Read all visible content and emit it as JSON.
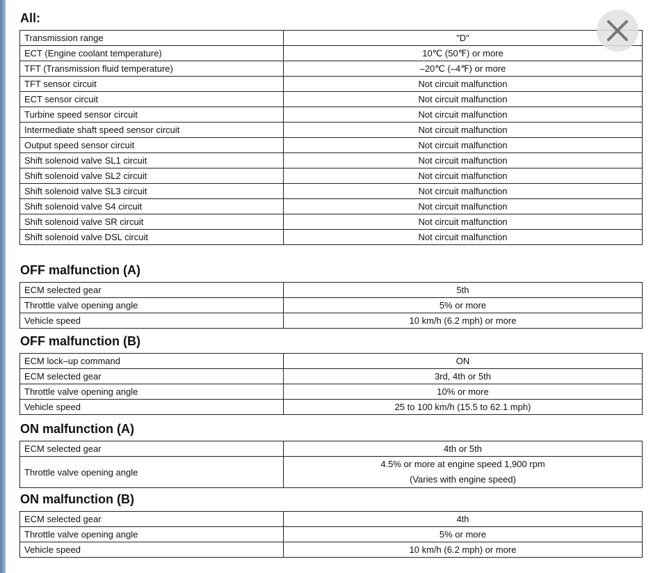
{
  "sections": [
    {
      "title": "All:",
      "rows": [
        [
          "Transmission range",
          "\"D\""
        ],
        [
          "ECT (Engine coolant temperature)",
          "10℃ (50℉) or more"
        ],
        [
          "TFT (Transmission fluid temperature)",
          "–20℃ (–4℉) or more"
        ],
        [
          "TFT sensor circuit",
          "Not circuit malfunction"
        ],
        [
          "ECT sensor circuit",
          "Not circuit malfunction"
        ],
        [
          "Turbine speed sensor circuit",
          "Not circuit malfunction"
        ],
        [
          "Intermediate shaft speed sensor circuit",
          "Not circuit malfunction"
        ],
        [
          "Output speed sensor circuit",
          "Not circuit malfunction"
        ],
        [
          "Shift solenoid valve SL1 circuit",
          "Not circuit malfunction"
        ],
        [
          "Shift solenoid valve SL2 circuit",
          "Not circuit malfunction"
        ],
        [
          "Shift solenoid valve SL3 circuit",
          "Not circuit malfunction"
        ],
        [
          "Shift solenoid valve S4 circuit",
          "Not circuit malfunction"
        ],
        [
          "Shift solenoid valve SR circuit",
          "Not circuit malfunction"
        ],
        [
          "Shift solenoid valve DSL circuit",
          "Not circuit malfunction"
        ]
      ]
    },
    {
      "title": "OFF malfunction (A)",
      "rows": [
        [
          "ECM selected gear",
          "5th"
        ],
        [
          "Throttle valve opening angle",
          "5% or more"
        ],
        [
          "Vehicle speed",
          "10 km/h (6.2 mph) or more"
        ]
      ]
    },
    {
      "title": "OFF malfunction (B)",
      "rows": [
        [
          "ECM lock–up command",
          "ON"
        ],
        [
          "ECM selected gear",
          "3rd, 4th or 5th"
        ],
        [
          "Throttle valve opening angle",
          "10% or more"
        ],
        [
          "Vehicle speed",
          "25 to 100 km/h (15.5 to 62.1 mph)"
        ]
      ]
    },
    {
      "title": "ON malfunction (A)",
      "rows": [
        [
          "ECM selected gear",
          "4th or 5th"
        ],
        [
          "Throttle valve opening angle",
          "4.5% or more at engine speed 1,900 rpm",
          "(Varies with engine speed)"
        ]
      ]
    },
    {
      "title": "ON malfunction (B)",
      "rows": [
        [
          "ECM selected gear",
          "4th"
        ],
        [
          "Throttle valve opening angle",
          "5% or more"
        ],
        [
          "Vehicle speed",
          "10 km/h (6.2 mph) or more"
        ]
      ]
    }
  ],
  "close_button": {
    "icon": "close-icon"
  }
}
